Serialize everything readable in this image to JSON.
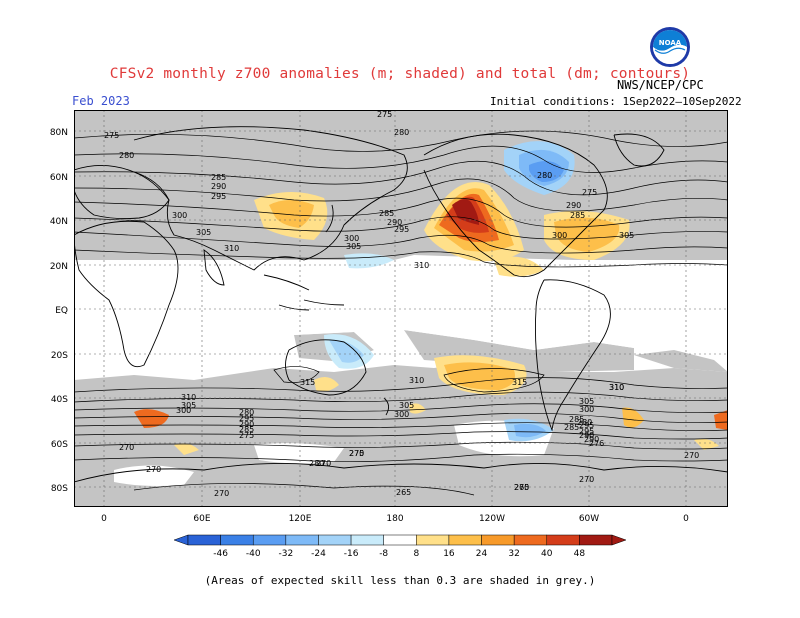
{
  "title": "CFSv2 monthly z700 anomalies (m; shaded) and total (dm; contours)",
  "period": "Feb 2023",
  "agency": "NWS/NCEP/CPC",
  "initial_conditions": "Initial conditions: 1Sep2022–10Sep2022",
  "logo_text": "NOAA",
  "lat_labels": [
    "80N",
    "60N",
    "40N",
    "20N",
    "EQ",
    "20S",
    "40S",
    "60S",
    "80S"
  ],
  "lon_labels": [
    "0",
    "60E",
    "120E",
    "180",
    "120W",
    "60W",
    "0"
  ],
  "colorbar": {
    "ticks": [
      "-46",
      "-40",
      "-32",
      "-24",
      "-16",
      "-8",
      "8",
      "16",
      "24",
      "32",
      "40",
      "48"
    ],
    "colors": [
      "#2a62d6",
      "#3a80e6",
      "#5a9df2",
      "#7ebaf7",
      "#a3d3f8",
      "#c9ebfa",
      "#ffffff",
      "#ffe08a",
      "#fdbf4a",
      "#f79a2a",
      "#ee6a1f",
      "#d43d1a",
      "#a11a13"
    ]
  },
  "contour_labels": [
    "275",
    "280",
    "285",
    "290",
    "295",
    "300",
    "305",
    "310",
    "275",
    "280",
    "285",
    "290",
    "295",
    "300",
    "305",
    "310",
    "275",
    "280",
    "285",
    "290",
    "300",
    "305",
    "315",
    "315",
    "310",
    "310",
    "305",
    "300",
    "295",
    "290",
    "285",
    "280",
    "275",
    "270",
    "265",
    "310",
    "305",
    "300",
    "295",
    "290",
    "285",
    "280",
    "275",
    "270",
    "265",
    "310",
    "305",
    "300",
    "295",
    "290",
    "285",
    "280",
    "276",
    "270",
    "270",
    "270",
    "270",
    "270",
    "270"
  ],
  "note": "(Areas of expected skill less than 0.3 are shaded in grey.)"
}
